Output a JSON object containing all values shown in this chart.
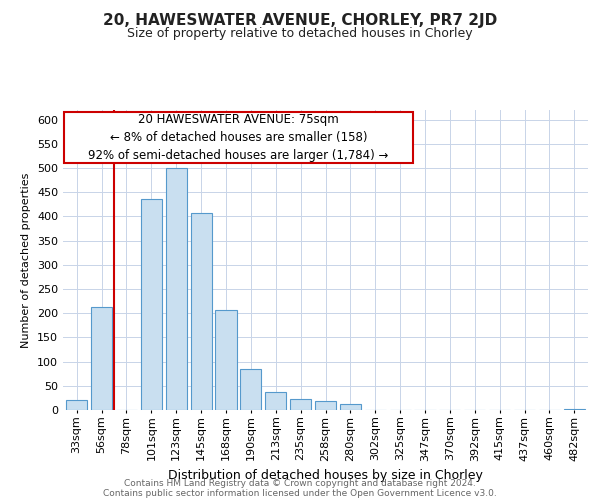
{
  "title": "20, HAWESWATER AVENUE, CHORLEY, PR7 2JD",
  "subtitle": "Size of property relative to detached houses in Chorley",
  "xlabel": "Distribution of detached houses by size in Chorley",
  "ylabel": "Number of detached properties",
  "bar_labels": [
    "33sqm",
    "56sqm",
    "78sqm",
    "101sqm",
    "123sqm",
    "145sqm",
    "168sqm",
    "190sqm",
    "213sqm",
    "235sqm",
    "258sqm",
    "280sqm",
    "302sqm",
    "325sqm",
    "347sqm",
    "370sqm",
    "392sqm",
    "415sqm",
    "437sqm",
    "460sqm",
    "482sqm"
  ],
  "bar_values": [
    20,
    212,
    0,
    437,
    500,
    408,
    207,
    85,
    38,
    23,
    19,
    12,
    0,
    0,
    0,
    0,
    0,
    0,
    0,
    0,
    3
  ],
  "bar_color": "#c9dff0",
  "bar_edge_color": "#5599cc",
  "vline_color": "#cc0000",
  "vline_index": 2,
  "annotation_line1": "20 HAWESWATER AVENUE: 75sqm",
  "annotation_line2": "← 8% of detached houses are smaller (158)",
  "annotation_line3": "92% of semi-detached houses are larger (1,784) →",
  "annotation_box_color": "#ffffff",
  "annotation_box_edge": "#cc0000",
  "ylim": [
    0,
    620
  ],
  "yticks": [
    0,
    50,
    100,
    150,
    200,
    250,
    300,
    350,
    400,
    450,
    500,
    550,
    600
  ],
  "footer_line1": "Contains HM Land Registry data © Crown copyright and database right 2024.",
  "footer_line2": "Contains public sector information licensed under the Open Government Licence v3.0.",
  "background_color": "#ffffff",
  "grid_color": "#c8d4e8",
  "title_fontsize": 11,
  "subtitle_fontsize": 9,
  "ylabel_fontsize": 8,
  "xlabel_fontsize": 9,
  "tick_fontsize": 8,
  "footer_fontsize": 6.5,
  "annotation_fontsize": 8.5
}
